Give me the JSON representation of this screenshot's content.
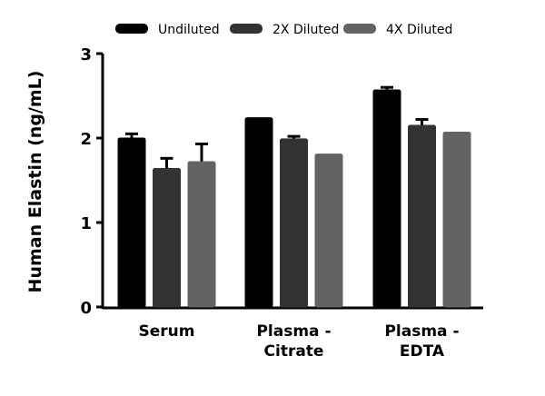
{
  "chart_data": {
    "type": "bar",
    "title": "",
    "xlabel": "",
    "ylabel": "Human Elastin (ng/mL)",
    "ylim": [
      0,
      3
    ],
    "yticks": [
      "0",
      "1",
      "2",
      "3"
    ],
    "categories": [
      [
        "Serum"
      ],
      [
        "Plasma -",
        "Citrate"
      ],
      [
        "Plasma -",
        "EDTA"
      ]
    ],
    "legend_position": "top",
    "grid": false,
    "series": [
      {
        "name": "Undiluted",
        "color": "#000000",
        "values": [
          2.0,
          2.24,
          2.57
        ],
        "errors": [
          0.05,
          0.0,
          0.03
        ]
      },
      {
        "name": "2X Diluted",
        "color": "#333333",
        "values": [
          1.64,
          1.99,
          2.15
        ],
        "errors": [
          0.12,
          0.03,
          0.07
        ]
      },
      {
        "name": "4X Diluted",
        "color": "#636363",
        "values": [
          1.72,
          1.81,
          2.07
        ],
        "errors": [
          0.21,
          0.0,
          0.0
        ]
      }
    ]
  }
}
